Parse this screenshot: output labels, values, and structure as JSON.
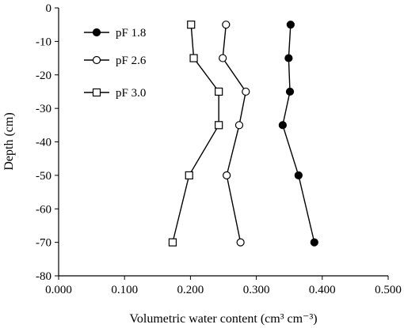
{
  "chart_data": {
    "type": "line",
    "title": "",
    "xlabel": "Volumetric water content (cm³ cm⁻³)",
    "ylabel": "Depth (cm)",
    "xlim": [
      0,
      0.5
    ],
    "ylim": [
      -80,
      0
    ],
    "x_ticks": [
      "0.000",
      "0.100",
      "0.200",
      "0.300",
      "0.400",
      "0.500"
    ],
    "y_ticks": [
      "0",
      "-10",
      "-20",
      "-30",
      "-40",
      "-50",
      "-60",
      "-70",
      "-80"
    ],
    "grid": false,
    "legend_position": "top-left",
    "series": [
      {
        "name": "pF 1.8",
        "marker": "filled-circle",
        "color": "#000000",
        "points": [
          {
            "x": 0.352,
            "y": -5
          },
          {
            "x": 0.349,
            "y": -15
          },
          {
            "x": 0.351,
            "y": -25
          },
          {
            "x": 0.34,
            "y": -35
          },
          {
            "x": 0.364,
            "y": -50
          },
          {
            "x": 0.388,
            "y": -70
          }
        ]
      },
      {
        "name": "pF 2.6",
        "marker": "open-circle",
        "color": "#000000",
        "points": [
          {
            "x": 0.254,
            "y": -5
          },
          {
            "x": 0.249,
            "y": -15
          },
          {
            "x": 0.284,
            "y": -25
          },
          {
            "x": 0.274,
            "y": -35
          },
          {
            "x": 0.255,
            "y": -50
          },
          {
            "x": 0.276,
            "y": -70
          }
        ]
      },
      {
        "name": "pF 3.0",
        "marker": "open-square",
        "color": "#000000",
        "points": [
          {
            "x": 0.201,
            "y": -5
          },
          {
            "x": 0.205,
            "y": -15
          },
          {
            "x": 0.243,
            "y": -25
          },
          {
            "x": 0.243,
            "y": -35
          },
          {
            "x": 0.198,
            "y": -50
          },
          {
            "x": 0.173,
            "y": -70
          }
        ]
      }
    ]
  }
}
